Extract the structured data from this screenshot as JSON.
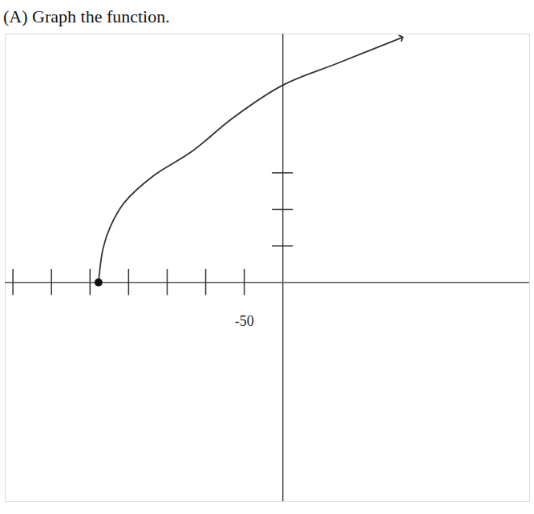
{
  "chart_data": {
    "type": "line",
    "title": "(A) Graph the function.",
    "x": [
      -239,
      -233,
      -223,
      -205,
      -169,
      -117,
      -65,
      0,
      71,
      154
    ],
    "values": [
      0,
      0.94,
      1.56,
      2.2,
      2.9,
      3.6,
      4.5,
      5.4,
      6.0,
      6.7
    ],
    "color": "#333333",
    "xlim": [
      -360,
      320
    ],
    "ylim": [
      -6,
      6.8
    ],
    "xticks": [
      {
        "value": -350,
        "label": null
      },
      {
        "value": -300,
        "label": null
      },
      {
        "value": -250,
        "label": null
      },
      {
        "value": -200,
        "label": null
      },
      {
        "value": -150,
        "label": null
      },
      {
        "value": -100,
        "label": null
      },
      {
        "value": -50,
        "label": "-50"
      }
    ],
    "yticks": [
      {
        "value": 1,
        "label": null
      },
      {
        "value": 2,
        "label": null
      },
      {
        "value": 3,
        "label": null
      }
    ],
    "tick_labels": "x",
    "grid": false,
    "marker": "arrow",
    "line_style": "solid"
  }
}
